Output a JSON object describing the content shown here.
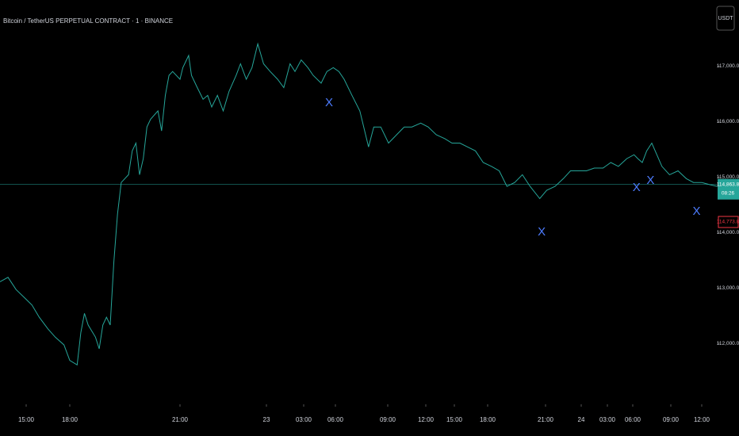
{
  "chart_data": {
    "type": "line",
    "title": "Bitcoin / TetherUS PERPETUAL CONTRACT · 1 · BINANCE",
    "currency_button": "USDT",
    "x": [
      1.2,
      1.75,
      2.3,
      2.85,
      3.4,
      3.9,
      4.5,
      5.0,
      5.6,
      6.0,
      6.2,
      6.3,
      6.4,
      6.5,
      6.7,
      6.8,
      6.9,
      7.0,
      7.1,
      7.2,
      7.3,
      7.4,
      7.6,
      7.7,
      7.8,
      7.9,
      8.0,
      8.1,
      8.2,
      8.4,
      8.5,
      8.6,
      8.7,
      8.8,
      9.0,
      9.1,
      9.3,
      9.4,
      9.6,
      9.8,
      9.96,
      10.1,
      10.3,
      10.5,
      10.7,
      10.95,
      11.1,
      11.3,
      11.5,
      11.7,
      11.9,
      12.3,
      12.9,
      13.4,
      13.9,
      14.3,
      14.8,
      15.4,
      15.9,
      16.65,
      17.2,
      17.8,
      18.2,
      18.5,
      18.95,
      19.4,
      19.9,
      20.2,
      20.6,
      21.06,
      21.7,
      22.3,
      22.9,
      23.6,
      24.25,
      25.1,
      26.0,
      26.75,
      27.5,
      28.2,
      28.9,
      29.6,
      30.2,
      30.6,
      31.0,
      31.4,
      31.8,
      32.2,
      32.7,
      33.1,
      33.8,
      34.5,
      35.1,
      35.8,
      36.6,
      37.5,
      38.5,
      39.4,
      40.3,
      41.3,
      42.1,
      42.4,
      42.75,
      43.1,
      43.5,
      43.9,
      44.3,
      44.9,
      45.7,
      46.5,
      47.2,
      48.0,
      48.8,
      49.5
    ],
    "series": [
      {
        "name": "BTCUSDT",
        "color": "#26a69a",
        "values": [
          113110,
          113190,
          112970,
          112830,
          112690,
          112470,
          112260,
          112110,
          111970,
          111690,
          111610,
          112190,
          112540,
          112330,
          112110,
          111900,
          112330,
          112470,
          112330,
          113470,
          114330,
          114900,
          115040,
          115470,
          115610,
          115040,
          115330,
          115900,
          116040,
          116190,
          115830,
          116470,
          116830,
          116900,
          116760,
          116970,
          117190,
          116830,
          116610,
          116400,
          116470,
          116260,
          116470,
          116190,
          116540,
          116830,
          117040,
          116760,
          116970,
          117400,
          117040,
          116900,
          116760,
          116610,
          117040,
          116900,
          117110,
          116970,
          116830,
          116690,
          116900,
          116970,
          116900,
          116760,
          116470,
          116190,
          115540,
          115900,
          115900,
          115610,
          115760,
          115900,
          115900,
          115970,
          115900,
          115760,
          115690,
          115610,
          115610,
          115540,
          115470,
          115260,
          115190,
          115110,
          114830,
          114900,
          115040,
          114830,
          114610,
          114760,
          114830,
          114970,
          115110,
          115110,
          115110,
          115160,
          115160,
          115260,
          115190,
          115330,
          115400,
          115330,
          115260,
          115470,
          115610,
          115400,
          115190,
          115040,
          115110,
          114970,
          114900,
          114900,
          114860,
          114830
        ]
      }
    ],
    "signals": {
      "label": "X",
      "color": "#4d7cff",
      "x": [
        17.4,
        32.8,
        42.3,
        43.4,
        47.5
      ],
      "values": [
        116330,
        114000,
        114800,
        114930,
        114370
      ]
    },
    "last_price": {
      "value": 114863.8,
      "label": "114,863.8",
      "countdown": "08:26",
      "color": "#26a69a"
    },
    "other_price": {
      "value": 114773.8,
      "label": "114,773.8",
      "color": "#f23645"
    },
    "xlim": [
      1.2,
      49.5
    ],
    "ylim": [
      110900,
      118190
    ],
    "xticks": [
      {
        "value": 3,
        "label": "15:00"
      },
      {
        "value": 6,
        "label": "18:00"
      },
      {
        "value": 9,
        "label": "21:00"
      },
      {
        "value": 12,
        "label": "23"
      },
      {
        "value": 15,
        "label": "03:00"
      },
      {
        "value": 18,
        "label": "06:00"
      },
      {
        "value": 21,
        "label": "09:00"
      },
      {
        "value": 24,
        "label": "12:00"
      },
      {
        "value": 27,
        "label": "15:00"
      },
      {
        "value": 30,
        "label": "18:00"
      },
      {
        "value": 33,
        "label": "21:00"
      },
      {
        "value": 36,
        "label": "24"
      },
      {
        "value": 39,
        "label": "03:00"
      },
      {
        "value": 42,
        "label": "06:00"
      },
      {
        "value": 45,
        "label": "09:00"
      },
      {
        "value": 48,
        "label": "12:00"
      }
    ],
    "yticks": [
      {
        "value": 112000,
        "label": "112,000.0"
      },
      {
        "value": 113000,
        "label": "113,000.0"
      },
      {
        "value": 114000,
        "label": "114,000.0"
      },
      {
        "value": 115000,
        "label": "115,000.0"
      },
      {
        "value": 116000,
        "label": "116,000.0"
      },
      {
        "value": 117000,
        "label": "117,000.0"
      }
    ]
  }
}
